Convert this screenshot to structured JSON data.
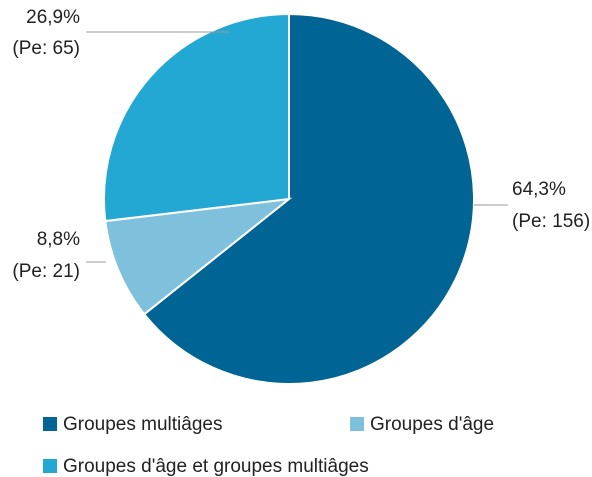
{
  "chart_data": {
    "type": "pie",
    "categories": [
      "Groupes multiâges",
      "Groupes d'âge",
      "Groupes d'âge et groupes multiâges"
    ],
    "values": [
      64.3,
      8.8,
      26.9
    ],
    "value_labels": [
      "64,3%",
      "8,8%",
      "26,9%"
    ],
    "counts_labels": [
      "(Pe: 156)",
      "(Pe: 21)",
      "(Pe: 65)"
    ],
    "colors": [
      "#006494",
      "#7fc1dd",
      "#22a8d2"
    ],
    "legend": "bottom"
  }
}
